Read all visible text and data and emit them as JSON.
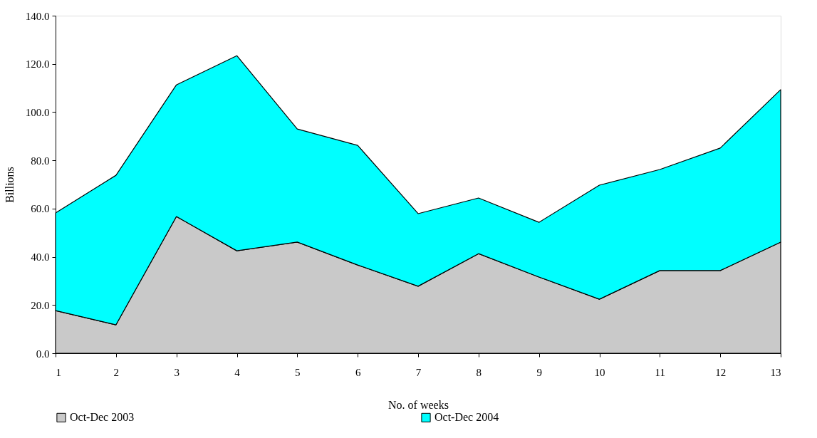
{
  "chart_data": {
    "type": "area",
    "stacked": true,
    "xlabel": "No. of weeks",
    "ylabel": "Billions",
    "x": [
      1,
      2,
      3,
      4,
      5,
      6,
      7,
      8,
      9,
      10,
      11,
      12,
      13
    ],
    "xlim": [
      1,
      13
    ],
    "xticks": [
      1,
      2,
      3,
      4,
      5,
      6,
      7,
      8,
      9,
      10,
      11,
      12,
      13
    ],
    "ylim": [
      0,
      140
    ],
    "yticks": [
      {
        "value": 0,
        "label": "0.0"
      },
      {
        "value": 20,
        "label": "20.0"
      },
      {
        "value": 40,
        "label": "40.0"
      },
      {
        "value": 60,
        "label": "60.0"
      },
      {
        "value": 80,
        "label": "80.0"
      },
      {
        "value": 100,
        "label": "100.0"
      },
      {
        "value": 120,
        "label": "120.0"
      },
      {
        "value": 140,
        "label": "140.0"
      }
    ],
    "grid": false,
    "legend": "bottom",
    "series": [
      {
        "name": "Oct-Dec 2003",
        "color": "#c9c9c9",
        "values": [
          17.7,
          11.8,
          56.7,
          42.5,
          46.1,
          36.6,
          27.8,
          41.3,
          31.6,
          22.4,
          34.3,
          34.3,
          46.1
        ]
      },
      {
        "name": "Oct-Dec 2004",
        "color": "#00ffff",
        "values": [
          40.5,
          62.0,
          54.6,
          80.9,
          46.9,
          49.6,
          30.1,
          23.1,
          22.7,
          47.3,
          41.9,
          50.8,
          63.2
        ]
      }
    ]
  }
}
